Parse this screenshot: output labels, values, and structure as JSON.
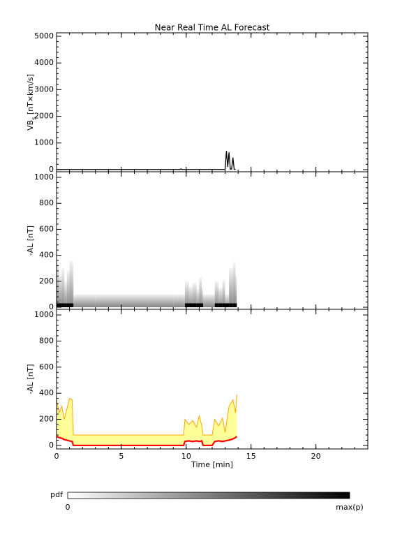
{
  "title": "Near Real Time AL Forecast",
  "chart_data": [
    {
      "type": "line",
      "ylabel": [
        "VB",
        "s",
        " [nT×km/s]"
      ],
      "x": [
        0,
        9.5,
        9.6,
        9.7,
        12.2,
        13.0,
        13.1,
        13.2,
        13.3,
        13.4,
        13.5,
        13.6,
        13.7,
        13.8
      ],
      "series": [
        {
          "color": "#000000",
          "values": [
            5,
            5,
            25,
            5,
            5,
            5,
            700,
            100,
            650,
            20,
            20,
            450,
            10,
            5
          ]
        }
      ],
      "xlim": [
        0,
        24
      ],
      "xticks": [
        0,
        5,
        10,
        15,
        20
      ],
      "show_xtick_labels": false,
      "ylim": [
        -80,
        5130
      ],
      "yticks": [
        0,
        1000,
        2000,
        3000,
        4000,
        5000
      ]
    },
    {
      "type": "pdf",
      "ylabel": [
        "-AL [nT]"
      ],
      "x": [
        0,
        0.2,
        0.4,
        0.6,
        0.8,
        1.0,
        1.2,
        1.3,
        3,
        5,
        7,
        9,
        9.8,
        9.9,
        10.2,
        10.5,
        10.8,
        11.0,
        11.2,
        11.3,
        12.0,
        12.2,
        12.5,
        12.8,
        13.0,
        13.3,
        13.6,
        13.8,
        13.9
      ],
      "series": [
        {
          "color": "#bbbbbb",
          "values": [
            350,
            250,
            300,
            200,
            280,
            360,
            350,
            100,
            100,
            100,
            100,
            100,
            100,
            200,
            160,
            190,
            140,
            230,
            150,
            100,
            100,
            200,
            150,
            210,
            100,
            300,
            350,
            250,
            390
          ]
        },
        {
          "color": "#000000",
          "values": [
            30,
            30,
            30,
            30,
            30,
            30,
            30,
            0,
            0,
            0,
            0,
            0,
            0,
            30,
            30,
            30,
            30,
            30,
            30,
            0,
            0,
            30,
            30,
            30,
            30,
            30,
            30,
            30,
            30
          ]
        }
      ],
      "xlim": [
        0,
        24
      ],
      "xticks": [
        0,
        5,
        10,
        15,
        20
      ],
      "show_xtick_labels": false,
      "ylim": [
        -16,
        1043
      ],
      "yticks": [
        0,
        200,
        400,
        600,
        800,
        1000
      ]
    },
    {
      "type": "band",
      "ylabel": [
        "-AL [nT]"
      ],
      "xlabel": "Time [min]",
      "x": [
        0,
        0.2,
        0.4,
        0.6,
        0.8,
        1.0,
        1.2,
        1.3,
        3,
        5,
        7,
        9,
        9.8,
        9.9,
        10.2,
        10.5,
        10.8,
        11.0,
        11.2,
        11.3,
        12.0,
        12.2,
        12.5,
        12.8,
        13.0,
        13.3,
        13.6,
        13.8,
        13.9
      ],
      "series": [
        {
          "color": "#ffa500",
          "values": [
            350,
            250,
            300,
            200,
            280,
            360,
            350,
            80,
            80,
            80,
            80,
            80,
            80,
            200,
            160,
            190,
            140,
            230,
            150,
            80,
            80,
            200,
            150,
            210,
            100,
            300,
            350,
            250,
            390
          ]
        },
        {
          "color": "#ff0000",
          "values": [
            70,
            60,
            55,
            45,
            40,
            35,
            30,
            0,
            0,
            0,
            0,
            0,
            0,
            30,
            35,
            30,
            35,
            30,
            35,
            0,
            0,
            30,
            35,
            30,
            35,
            40,
            50,
            60,
            70
          ]
        }
      ],
      "band_color": "#ffff99",
      "xlim": [
        0,
        24
      ],
      "xticks": [
        0,
        5,
        10,
        15,
        20
      ],
      "show_xtick_labels": true,
      "ylim": [
        -27,
        1043
      ],
      "yticks": [
        0,
        200,
        400,
        600,
        800,
        1000
      ]
    }
  ],
  "colorbar": {
    "label": "pdf",
    "min_label": "0",
    "max_label": "max(p)"
  }
}
